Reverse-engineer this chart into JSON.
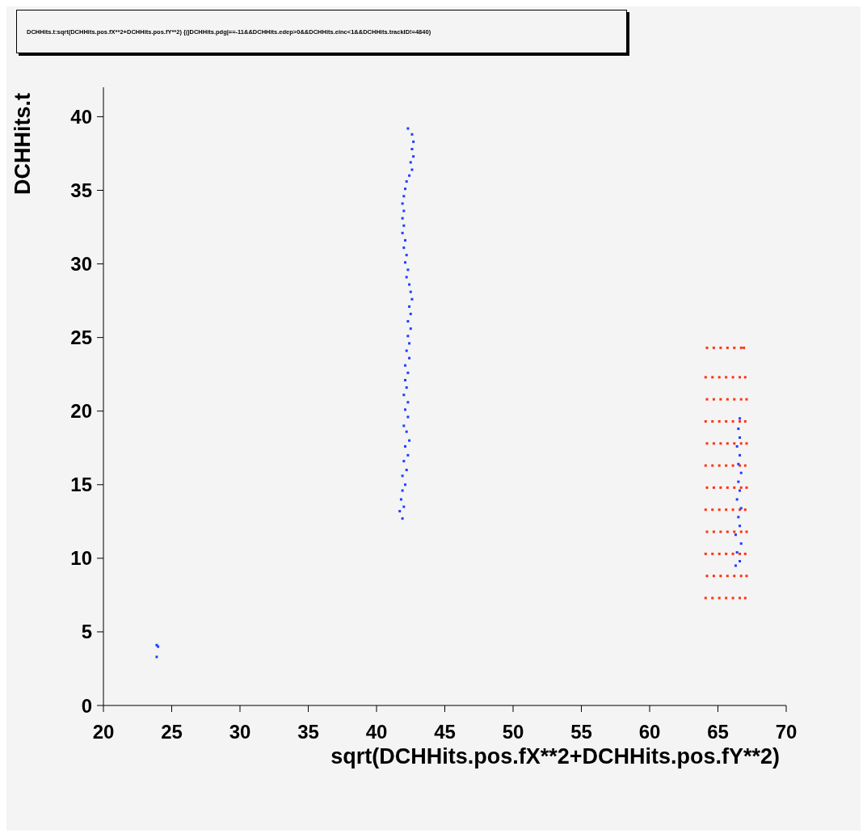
{
  "chart_data": {
    "type": "scatter",
    "title": "DCHHits.t:sqrt(DCHHits.pos.fX**2+DCHHits.pos.fY**2) {(|DCHHits.pdg|==-11&&DCHHits.edep>0&&DCHHits.einc<1&&DCHHits.trackID!=4840)",
    "xlabel": "sqrt(DCHHits.pos.fX**2+DCHHits.pos.fY**2)",
    "ylabel": "DCHHits.t",
    "xlim": [
      20,
      70
    ],
    "ylim": [
      0,
      42
    ],
    "xticks": [
      20,
      25,
      30,
      35,
      40,
      45,
      50,
      55,
      60,
      65,
      70
    ],
    "yticks": [
      0,
      5,
      10,
      15,
      20,
      25,
      30,
      35,
      40
    ],
    "grid": false,
    "legend": false,
    "marker": "square",
    "series": [
      {
        "color": "#ff3311",
        "x": [
          64.1,
          64.6,
          65.1,
          65.6,
          66.1,
          66.6,
          67.0,
          64.2,
          64.7,
          65.2,
          65.7,
          66.2,
          66.7,
          67.1,
          64.1,
          64.6,
          65.1,
          65.6,
          66.1,
          66.6,
          67.0,
          64.2,
          64.7,
          65.2,
          65.7,
          66.2,
          66.7,
          67.1,
          64.1,
          64.6,
          65.1,
          65.6,
          66.1,
          66.6,
          67.0,
          64.2,
          64.7,
          65.2,
          65.7,
          66.2,
          66.7,
          67.1,
          64.1,
          64.6,
          65.1,
          65.6,
          66.1,
          66.6,
          67.0,
          64.2,
          64.7,
          65.2,
          65.7,
          66.2,
          66.7,
          67.1,
          64.1,
          64.6,
          65.1,
          65.6,
          66.1,
          66.6,
          67.0,
          64.2,
          64.7,
          65.2,
          65.7,
          66.2,
          66.7,
          67.1,
          64.1,
          64.6,
          65.1,
          65.6,
          66.1,
          66.6,
          67.0,
          64.2,
          64.7,
          65.2,
          65.7,
          66.2,
          66.7,
          66.9
        ],
        "values": [
          7.3,
          7.3,
          7.3,
          7.3,
          7.3,
          7.3,
          7.3,
          8.8,
          8.8,
          8.8,
          8.8,
          8.8,
          8.8,
          8.8,
          10.3,
          10.3,
          10.3,
          10.3,
          10.3,
          10.3,
          10.3,
          11.8,
          11.8,
          11.8,
          11.8,
          11.8,
          11.8,
          11.8,
          13.3,
          13.3,
          13.3,
          13.3,
          13.3,
          13.3,
          13.3,
          14.8,
          14.8,
          14.8,
          14.8,
          14.8,
          14.8,
          14.8,
          16.3,
          16.3,
          16.3,
          16.3,
          16.3,
          16.3,
          16.3,
          17.8,
          17.8,
          17.8,
          17.8,
          17.8,
          17.8,
          17.8,
          19.3,
          19.3,
          19.3,
          19.3,
          19.3,
          19.3,
          19.3,
          20.8,
          20.8,
          20.8,
          20.8,
          20.8,
          20.8,
          20.8,
          22.3,
          22.3,
          22.3,
          22.3,
          22.3,
          22.3,
          22.3,
          24.3,
          24.3,
          24.3,
          24.3,
          24.3,
          24.3,
          24.3
        ]
      },
      {
        "color": "#1f3fff",
        "x": [
          41.9,
          41.7,
          42.0,
          41.8,
          41.9,
          42.1,
          41.9,
          42.2,
          42.0,
          42.3,
          42.1,
          42.4,
          42.2,
          42.0,
          42.3,
          42.1,
          42.3,
          42.0,
          42.2,
          42.1,
          42.3,
          42.1,
          42.4,
          42.2,
          42.4,
          42.3,
          42.5,
          42.3,
          42.5,
          42.4,
          42.6,
          42.5,
          42.4,
          42.2,
          42.3,
          42.1,
          42.2,
          42.0,
          42.1,
          41.9,
          42.0,
          41.9,
          42.0,
          41.9,
          42.0,
          42.1,
          42.2,
          42.4,
          42.6,
          42.5,
          42.7,
          42.6,
          42.7,
          42.6,
          42.3,
          23.9,
          24.0,
          23.9,
          66.3,
          66.6,
          66.4,
          66.7,
          66.3,
          66.6,
          66.5,
          66.7,
          66.4,
          66.6,
          66.5,
          66.7,
          66.5,
          66.6,
          66.4,
          66.6,
          66.5,
          66.6
        ],
        "values": [
          12.7,
          13.2,
          13.5,
          14.0,
          14.6,
          15.0,
          15.6,
          16.0,
          16.6,
          17.0,
          17.6,
          18.0,
          18.6,
          19.0,
          19.6,
          20.1,
          20.6,
          21.1,
          21.6,
          22.1,
          22.6,
          23.1,
          23.6,
          24.1,
          24.6,
          25.1,
          25.6,
          26.1,
          26.6,
          27.1,
          27.6,
          28.1,
          28.6,
          29.1,
          29.6,
          30.1,
          30.6,
          31.1,
          31.6,
          32.1,
          32.6,
          33.1,
          33.6,
          34.1,
          34.6,
          35.1,
          35.6,
          36.0,
          36.4,
          36.9,
          37.3,
          37.8,
          38.3,
          38.8,
          39.2,
          4.1,
          4.0,
          3.3,
          9.5,
          9.8,
          10.4,
          11.0,
          11.6,
          12.2,
          12.8,
          13.4,
          14.0,
          14.6,
          15.2,
          15.8,
          16.4,
          17.0,
          17.6,
          18.2,
          18.8,
          19.5
        ]
      }
    ]
  }
}
